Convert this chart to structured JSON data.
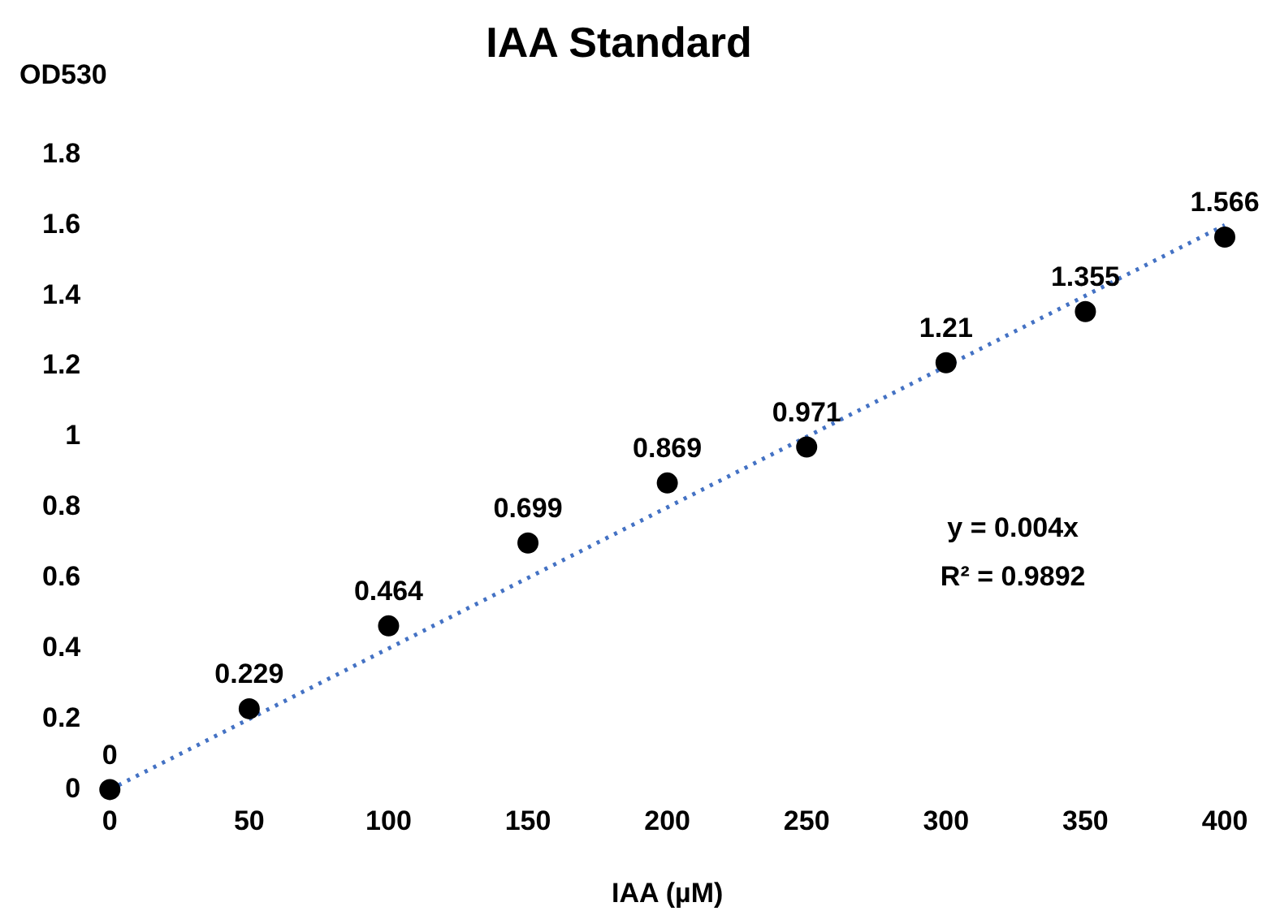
{
  "chart_data": {
    "type": "scatter",
    "title": "IAA Standard",
    "xlabel": "IAA (µM)",
    "ylabel": "OD530",
    "x": [
      0,
      50,
      100,
      150,
      200,
      250,
      300,
      350,
      400
    ],
    "series": [
      {
        "type": "scatter",
        "color": "#000000",
        "marker": "circle",
        "values": [
          0,
          0.229,
          0.464,
          0.699,
          0.869,
          0.971,
          1.21,
          1.355,
          1.566
        ],
        "value_labels": [
          "0",
          "0.229",
          "0.464",
          "0.699",
          "0.869",
          "0.971",
          "1.21",
          "1.355",
          "1.566"
        ]
      },
      {
        "type": "line",
        "color": "#4472c4",
        "line_style": "dotted",
        "marker": "none",
        "x": [
          0,
          400
        ],
        "values": [
          0,
          1.6
        ]
      }
    ],
    "xlim": [
      0,
      400
    ],
    "xticks": [
      0,
      50,
      100,
      150,
      200,
      250,
      300,
      350,
      400
    ],
    "ylim": [
      0,
      1.8
    ],
    "yticks": [
      0,
      0.2,
      0.4,
      0.6,
      0.8,
      1,
      1.2,
      1.4,
      1.6,
      1.8
    ],
    "grid": false,
    "legend": false,
    "annotations": [
      "y = 0.004x",
      "R² = 0.9892"
    ]
  }
}
